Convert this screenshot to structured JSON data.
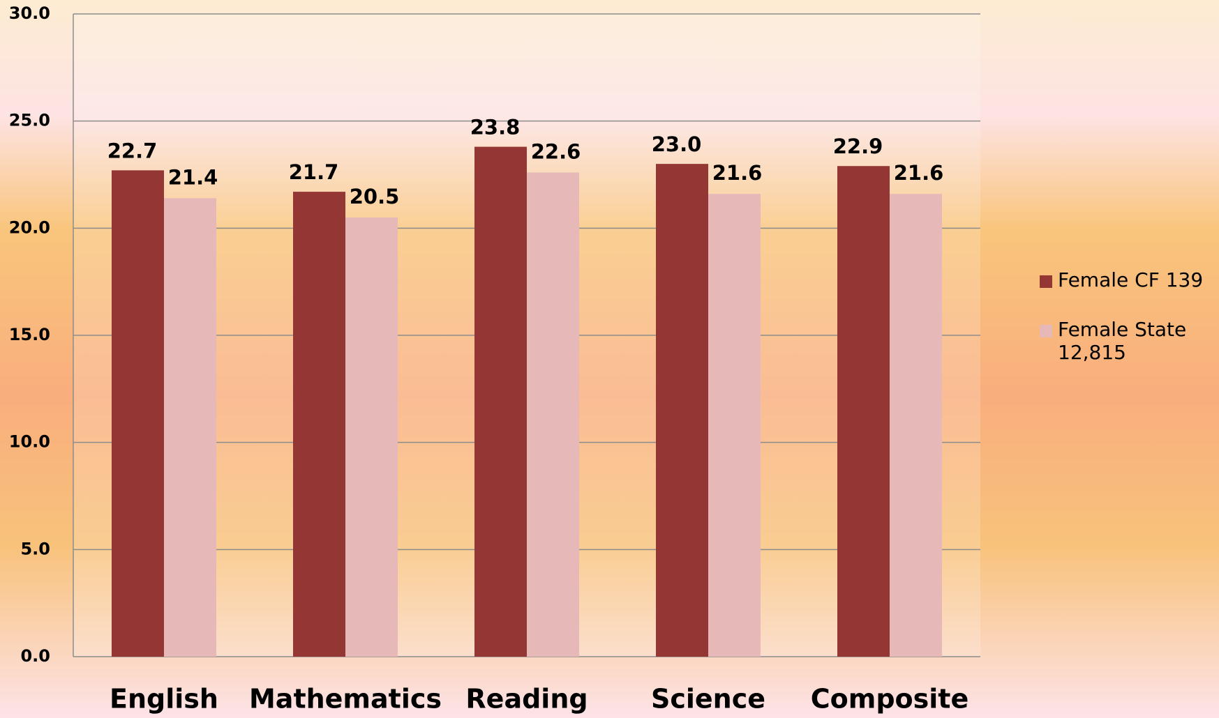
{
  "chart_data": {
    "type": "bar",
    "categories": [
      "English",
      "Mathematics",
      "Reading",
      "Science",
      "Composite"
    ],
    "series": [
      {
        "name": "Female CF 139",
        "color": "#943634",
        "values": [
          22.7,
          21.7,
          23.8,
          23.0,
          22.9
        ],
        "value_labels": [
          "22.7",
          "21.7",
          "23.8",
          "23.0",
          "22.9"
        ]
      },
      {
        "name": "Female State 12,815",
        "color": "#e6b9b8",
        "values": [
          21.4,
          20.5,
          22.6,
          21.6,
          21.6
        ],
        "value_labels": [
          "21.4",
          "20.5",
          "22.6",
          "21.6",
          "21.6"
        ]
      }
    ],
    "ylim": [
      0,
      30
    ],
    "yticks": [
      {
        "value": 0,
        "label": "0.0"
      },
      {
        "value": 5,
        "label": "5.0"
      },
      {
        "value": 10,
        "label": "10.0"
      },
      {
        "value": 15,
        "label": "15.0"
      },
      {
        "value": 20,
        "label": "20.0"
      },
      {
        "value": 25,
        "label": "25.0"
      },
      {
        "value": 30,
        "label": "30.0"
      }
    ],
    "grid": true,
    "legend": "right"
  }
}
